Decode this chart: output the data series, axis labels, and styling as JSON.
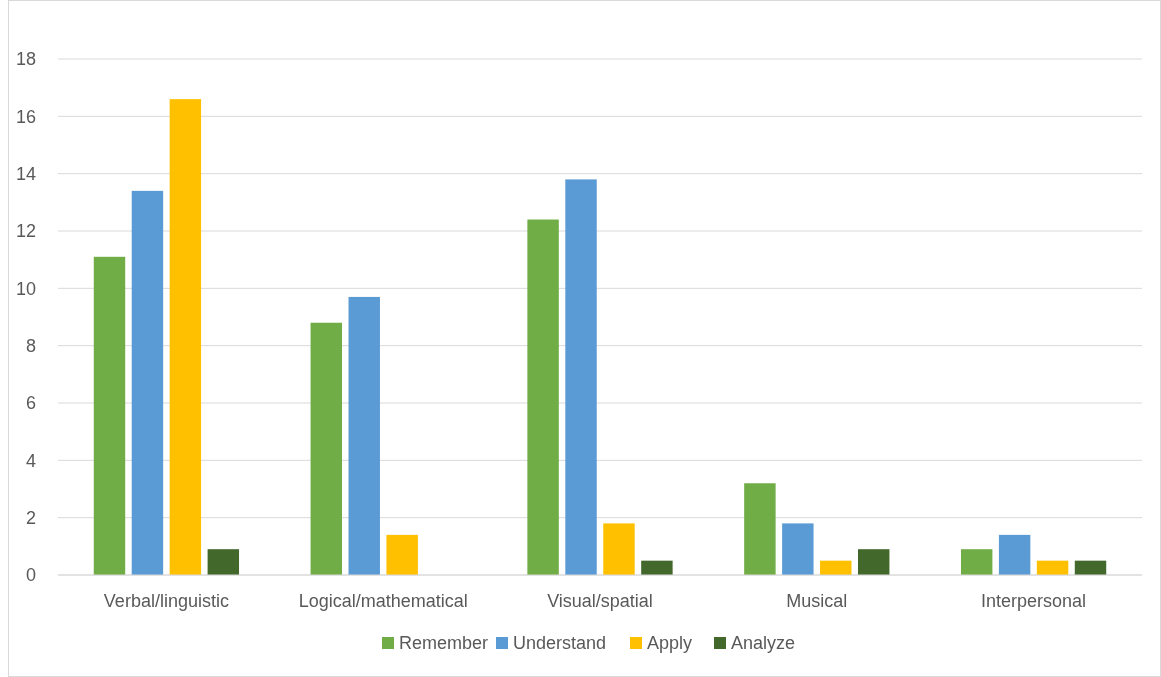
{
  "chart_data": {
    "type": "bar",
    "categories": [
      "Verbal/linguistic",
      "Logical/mathematical",
      "Visual/spatial",
      "Musical",
      "Interpersonal"
    ],
    "series": [
      {
        "name": "Remember",
        "color": "#70ad47",
        "values": [
          11.1,
          8.8,
          12.4,
          3.2,
          0.9
        ]
      },
      {
        "name": "Understand",
        "color": "#5b9bd5",
        "values": [
          13.4,
          9.7,
          13.8,
          1.8,
          1.4
        ]
      },
      {
        "name": "Apply",
        "color": "#ffc000",
        "values": [
          16.6,
          1.4,
          1.8,
          0.5,
          0.5
        ]
      },
      {
        "name": "Analyze",
        "color": "#43682b",
        "values": [
          0.9,
          0,
          0.5,
          0.9,
          0.5
        ]
      }
    ],
    "ylim": [
      0,
      18
    ],
    "yticks": [
      0,
      2,
      4,
      6,
      8,
      10,
      12,
      14,
      16,
      18
    ],
    "grid": "y",
    "legend": "bottom"
  }
}
